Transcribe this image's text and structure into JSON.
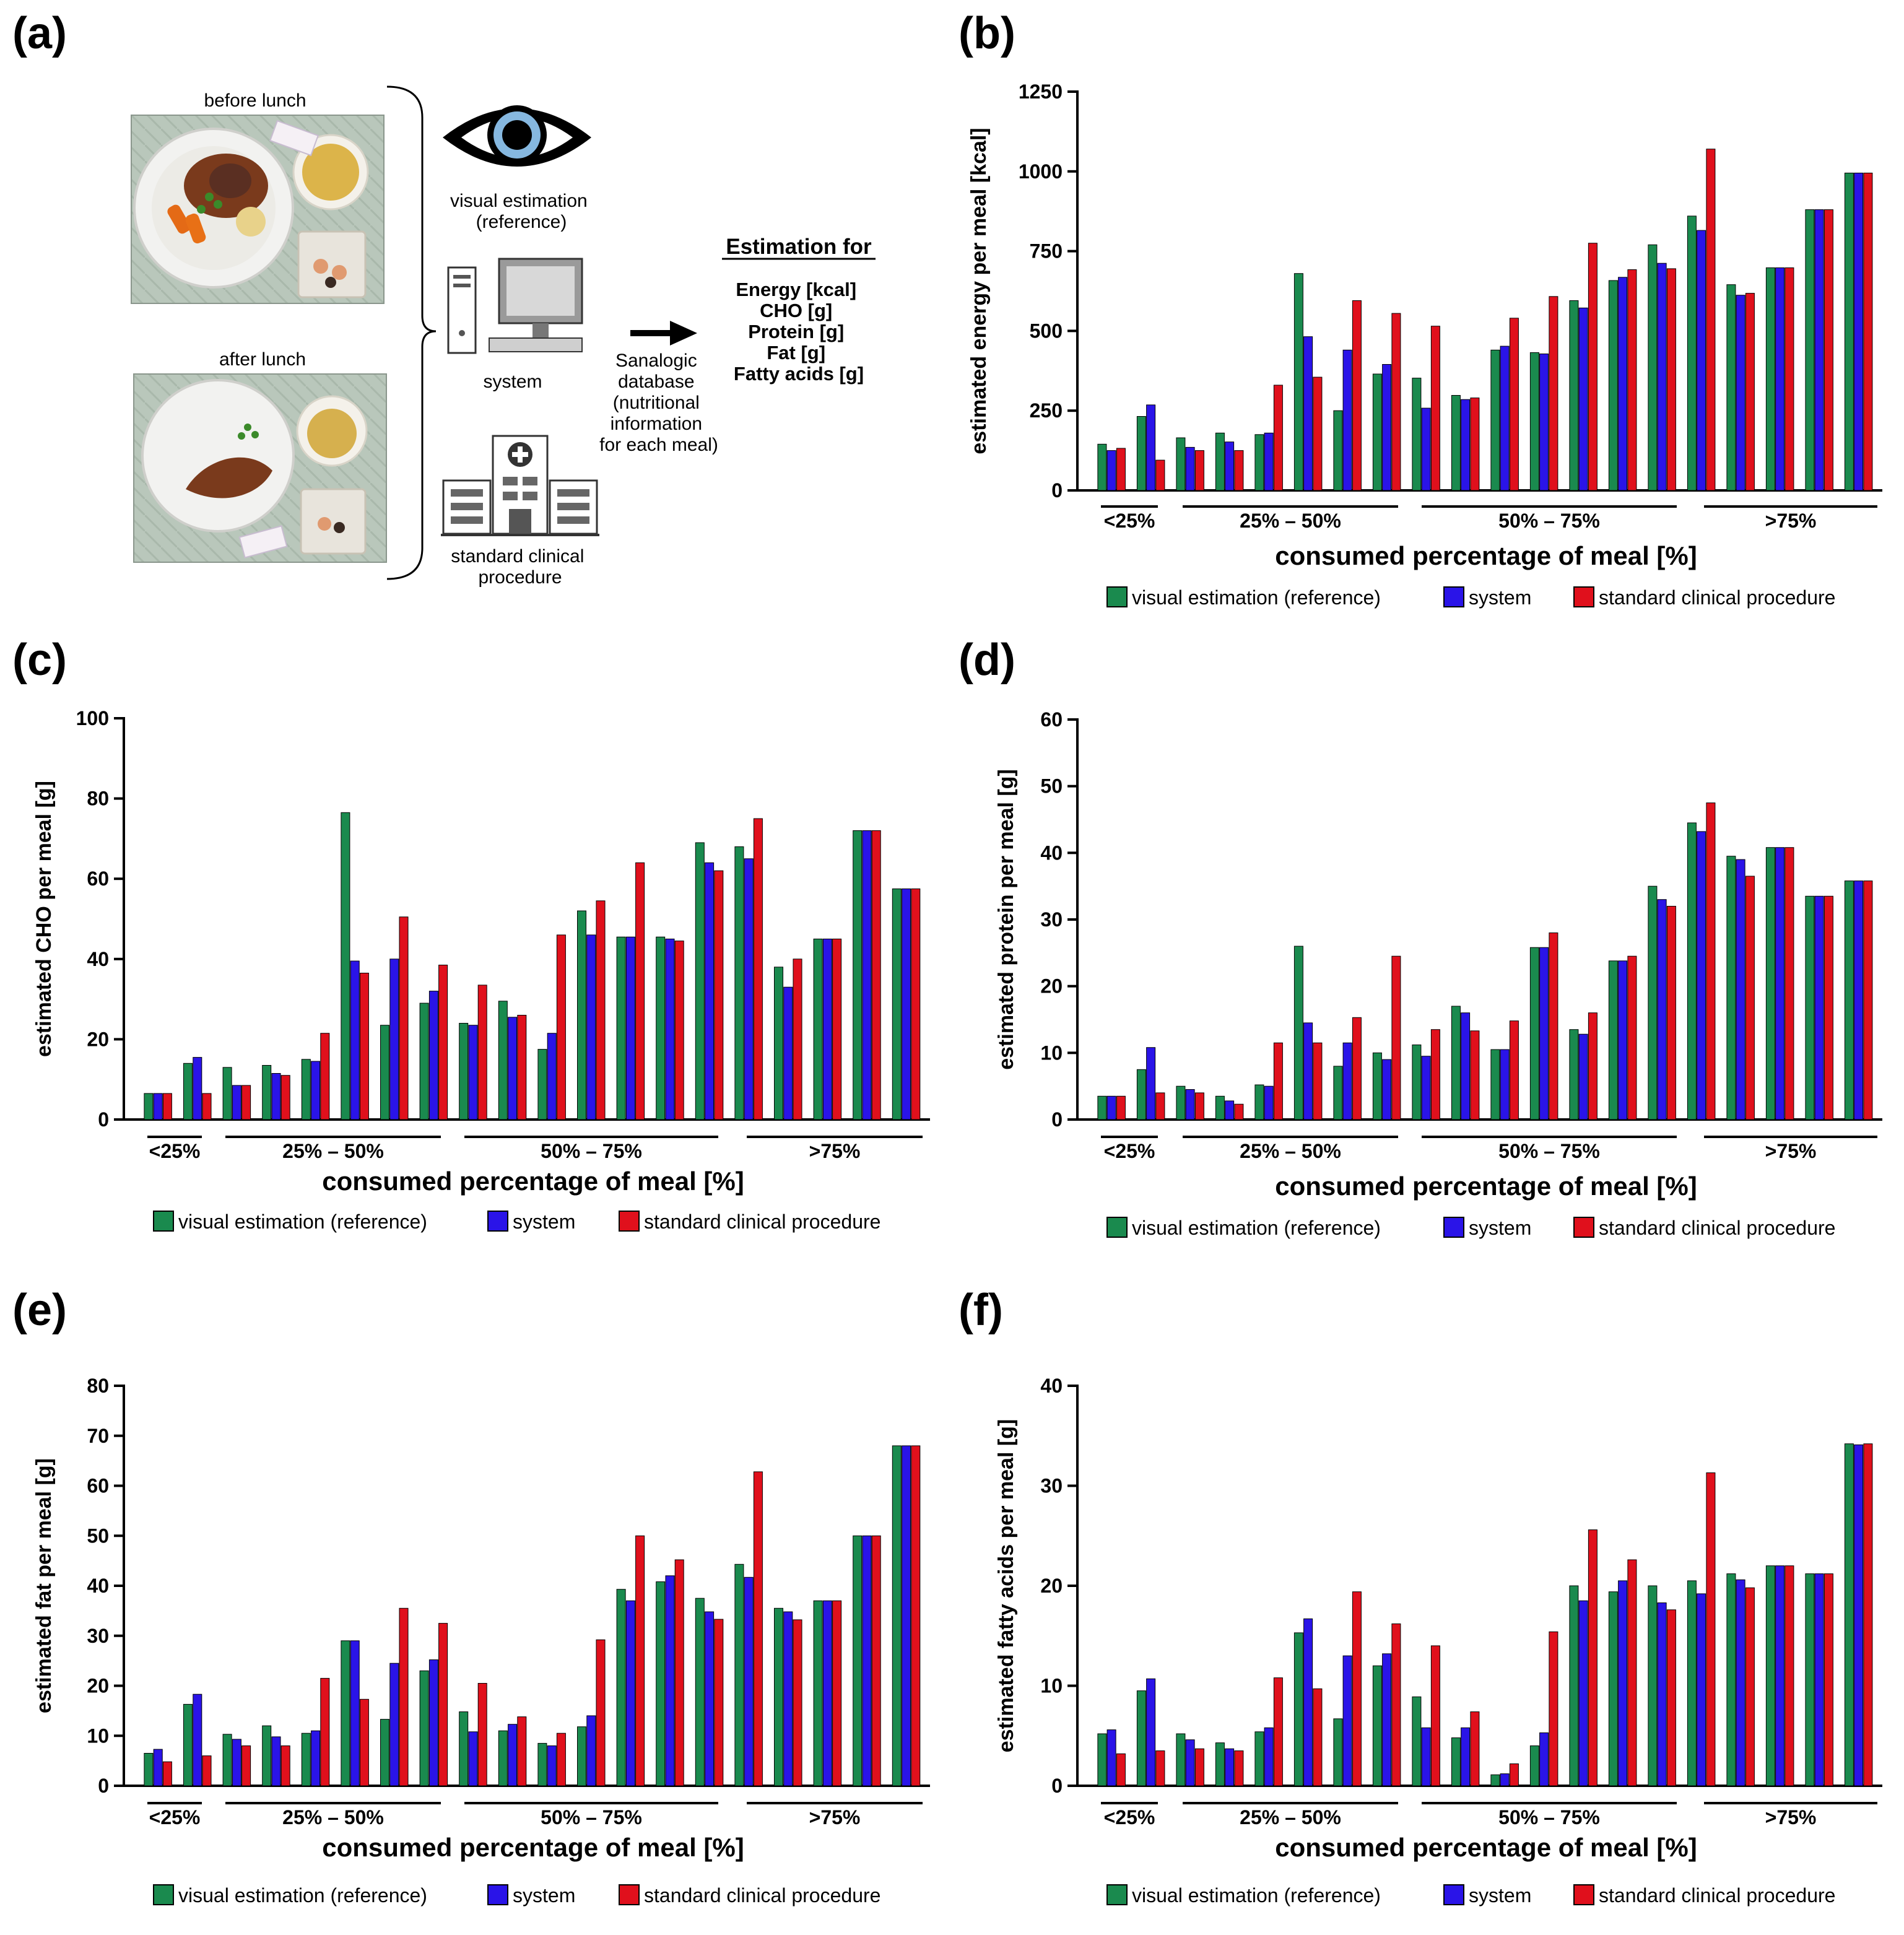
{
  "colors": {
    "reference": "#1a8a4e",
    "system": "#2a14e8",
    "standard": "#e0101c"
  },
  "panel_a": {
    "label": "(a)",
    "before": "before lunch",
    "after": "after lunch",
    "method_visual": [
      "visual estimation",
      "(reference)"
    ],
    "method_system": "system",
    "method_clinical": [
      "standard clinical",
      "procedure"
    ],
    "database": [
      "Sanalogic",
      "database",
      "(nutritional",
      "information",
      "for each meal)"
    ],
    "estimation_title": "Estimation for",
    "estimation_items": [
      "Energy [kcal]",
      "CHO [g]",
      "Protein [g]",
      "Fat [g]",
      "Fatty acids [g]"
    ],
    "icons": [
      "eye-icon",
      "computer-icon",
      "hospital-icon",
      "arrow-right-icon"
    ]
  },
  "chart_data": [
    {
      "id": "b",
      "type": "bar",
      "panel_label": "(b)",
      "ylabel": "estimated energy per meal [kcal]",
      "xlabel": "consumed percentage of meal [%]",
      "ylim": [
        0,
        1250
      ],
      "yticks": [
        0,
        250,
        500,
        750,
        1000,
        1250
      ],
      "groups": [
        {
          "label": "<25%",
          "meals": [
            0,
            1
          ]
        },
        {
          "label": "25% – 50%",
          "meals": [
            2,
            7
          ]
        },
        {
          "label": "50% – 75%",
          "meals": [
            8,
            13
          ]
        },
        {
          "label": ">75%",
          "meals": [
            14,
            18
          ]
        }
      ],
      "legend": [
        "visual estimation (reference)",
        "system",
        "standard clinical procedure"
      ],
      "series": [
        {
          "name": "visual estimation (reference)",
          "values": [
            145,
            232,
            165,
            180,
            175,
            680,
            250,
            365,
            352,
            298,
            440,
            432,
            595,
            658,
            770,
            860,
            645,
            698,
            880,
            995
          ]
        },
        {
          "name": "system",
          "values": [
            125,
            268,
            135,
            152,
            180,
            482,
            440,
            395,
            258,
            285,
            452,
            428,
            572,
            668,
            712,
            815,
            612,
            698,
            880,
            995
          ]
        },
        {
          "name": "standard clinical procedure",
          "values": [
            132,
            95,
            125,
            125,
            330,
            355,
            595,
            555,
            515,
            290,
            540,
            608,
            775,
            692,
            695,
            1070,
            618,
            698,
            880,
            995
          ]
        }
      ]
    },
    {
      "id": "c",
      "type": "bar",
      "panel_label": "(c)",
      "ylabel": "estimated CHO per meal [g]",
      "xlabel": "consumed percentage of meal [%]",
      "ylim": [
        0,
        100
      ],
      "yticks": [
        0,
        20,
        40,
        60,
        80,
        100
      ],
      "groups": [
        {
          "label": "<25%",
          "meals": [
            0,
            1
          ]
        },
        {
          "label": "25% – 50%",
          "meals": [
            2,
            7
          ]
        },
        {
          "label": "50% – 75%",
          "meals": [
            8,
            13
          ]
        },
        {
          "label": ">75%",
          "meals": [
            14,
            18
          ]
        }
      ],
      "legend": [
        "visual estimation (reference)",
        "system",
        "standard clinical procedure"
      ],
      "series": [
        {
          "name": "visual estimation (reference)",
          "values": [
            6.5,
            14,
            13,
            13.5,
            15,
            76.5,
            23.5,
            29,
            24,
            29.5,
            17.5,
            52,
            45.5,
            45.5,
            69,
            68,
            38,
            45,
            72,
            57.5
          ]
        },
        {
          "name": "system",
          "values": [
            6.5,
            15.5,
            8.5,
            11.5,
            14.5,
            39.5,
            40,
            32,
            23.5,
            25.5,
            21.5,
            46,
            45.5,
            45,
            64,
            65,
            33,
            45,
            72,
            57.5
          ]
        },
        {
          "name": "standard clinical procedure",
          "values": [
            6.5,
            6.5,
            8.5,
            11,
            21.5,
            36.5,
            50.5,
            38.5,
            33.5,
            26,
            46,
            54.5,
            64,
            44.5,
            62,
            75,
            40,
            45,
            72,
            57.5
          ]
        }
      ]
    },
    {
      "id": "d",
      "type": "bar",
      "panel_label": "(d)",
      "ylabel": "estimated protein per meal [g]",
      "xlabel": "consumed percentage of meal [%]",
      "ylim": [
        0,
        60
      ],
      "yticks": [
        0,
        10,
        20,
        30,
        40,
        50,
        60
      ],
      "groups": [
        {
          "label": "<25%",
          "meals": [
            0,
            1
          ]
        },
        {
          "label": "25% – 50%",
          "meals": [
            2,
            7
          ]
        },
        {
          "label": "50% – 75%",
          "meals": [
            8,
            13
          ]
        },
        {
          "label": ">75%",
          "meals": [
            14,
            18
          ]
        }
      ],
      "legend": [
        "visual estimation (reference)",
        "system",
        "standard clinical procedure"
      ],
      "series": [
        {
          "name": "visual estimation (reference)",
          "values": [
            3.5,
            7.5,
            5,
            3.5,
            5.2,
            26,
            8,
            10,
            11.2,
            17,
            10.5,
            25.8,
            13.5,
            23.8,
            35,
            44.5,
            39.5,
            40.8,
            33.5,
            35.8
          ]
        },
        {
          "name": "system",
          "values": [
            3.5,
            10.8,
            4.5,
            2.8,
            5,
            14.5,
            11.5,
            9,
            9.5,
            16,
            10.5,
            25.8,
            12.8,
            23.8,
            33,
            43.2,
            39,
            40.8,
            33.5,
            35.8
          ]
        },
        {
          "name": "standard clinical procedure",
          "values": [
            3.5,
            4,
            4,
            2.3,
            11.5,
            11.5,
            15.3,
            24.5,
            13.5,
            13.3,
            14.8,
            28,
            16,
            24.5,
            32,
            47.5,
            36.5,
            40.8,
            33.5,
            35.8
          ]
        }
      ]
    },
    {
      "id": "e",
      "type": "bar",
      "panel_label": "(e)",
      "ylabel": "estimated fat per meal [g]",
      "xlabel": "consumed percentage of meal [%]",
      "ylim": [
        0,
        80
      ],
      "yticks": [
        0,
        10,
        20,
        30,
        40,
        50,
        60,
        70,
        80
      ],
      "groups": [
        {
          "label": "<25%",
          "meals": [
            0,
            1
          ]
        },
        {
          "label": "25% – 50%",
          "meals": [
            2,
            7
          ]
        },
        {
          "label": "50% – 75%",
          "meals": [
            8,
            13
          ]
        },
        {
          "label": ">75%",
          "meals": [
            14,
            18
          ]
        }
      ],
      "legend": [
        "visual estimation (reference)",
        "system",
        "standard clinical procedure"
      ],
      "series": [
        {
          "name": "visual estimation (reference)",
          "values": [
            6.5,
            16.3,
            10.3,
            12,
            10.5,
            29,
            13.3,
            23,
            14.8,
            11,
            8.5,
            11.8,
            39.3,
            40.8,
            37.5,
            44.3,
            35.5,
            37,
            50,
            68
          ]
        },
        {
          "name": "system",
          "values": [
            7.3,
            18.3,
            9.3,
            9.8,
            11,
            29,
            24.5,
            25.2,
            10.8,
            12.3,
            8,
            14,
            37,
            42,
            34.8,
            41.7,
            34.8,
            37,
            50,
            68
          ]
        },
        {
          "name": "standard clinical procedure",
          "values": [
            4.8,
            6,
            8,
            8,
            21.5,
            17.3,
            35.5,
            32.5,
            20.5,
            13.8,
            10.5,
            29.2,
            50,
            45.2,
            33.3,
            62.8,
            33.2,
            37,
            50,
            68
          ]
        }
      ]
    },
    {
      "id": "f",
      "type": "bar",
      "panel_label": "(f)",
      "ylabel": "estimated fatty acids per meal [g]",
      "xlabel": "consumed percentage of meal [%]",
      "ylim": [
        0,
        40
      ],
      "yticks": [
        0,
        10,
        20,
        30,
        40
      ],
      "groups": [
        {
          "label": "<25%",
          "meals": [
            0,
            1
          ]
        },
        {
          "label": "25% – 50%",
          "meals": [
            2,
            7
          ]
        },
        {
          "label": "50% – 75%",
          "meals": [
            8,
            13
          ]
        },
        {
          "label": ">75%",
          "meals": [
            14,
            18
          ]
        }
      ],
      "legend": [
        "visual estimation (reference)",
        "system",
        "standard clinical procedure"
      ],
      "series": [
        {
          "name": "visual estimation (reference)",
          "values": [
            5.2,
            9.5,
            5.2,
            4.3,
            5.4,
            15.3,
            6.7,
            12,
            8.9,
            4.8,
            1.1,
            4,
            20,
            19.4,
            20,
            20.5,
            21.2,
            22,
            21.2,
            34.2
          ]
        },
        {
          "name": "system",
          "values": [
            5.6,
            10.7,
            4.6,
            3.7,
            5.8,
            16.7,
            13,
            13.2,
            5.8,
            5.8,
            1.2,
            5.3,
            18.5,
            20.5,
            18.3,
            19.2,
            20.6,
            22,
            21.2,
            34.1
          ]
        },
        {
          "name": "standard clinical procedure",
          "values": [
            3.2,
            3.5,
            3.7,
            3.5,
            10.8,
            9.7,
            19.4,
            16.2,
            14,
            7.4,
            2.2,
            15.4,
            25.6,
            22.6,
            17.6,
            31.3,
            19.8,
            22,
            21.2,
            34.2
          ]
        }
      ]
    }
  ]
}
